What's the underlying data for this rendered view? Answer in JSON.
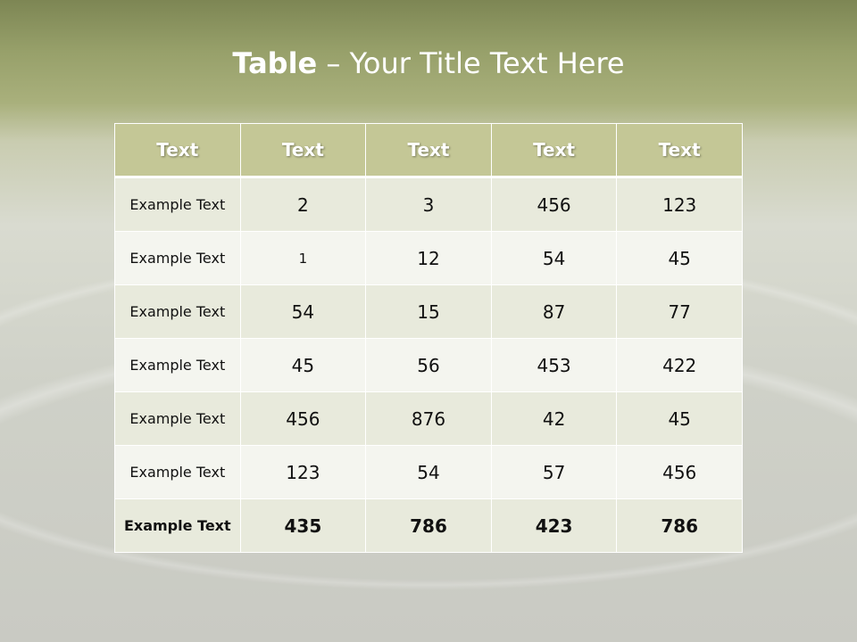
{
  "title": {
    "bold": "Table",
    "rest": " – Your Title Text Here"
  },
  "table": {
    "headers": [
      "Text",
      "Text",
      "Text",
      "Text",
      "Text"
    ],
    "rows": [
      [
        "Example Text",
        "2",
        "3",
        "456",
        "123"
      ],
      [
        "Example Text",
        "1",
        "12",
        "54",
        "45"
      ],
      [
        "Example Text",
        "54",
        "15",
        "87",
        "77"
      ],
      [
        "Example Text",
        "45",
        "56",
        "453",
        "422"
      ],
      [
        "Example Text",
        "456",
        "876",
        "42",
        "45"
      ],
      [
        "Example Text",
        "123",
        "54",
        "57",
        "456"
      ],
      [
        "Example Text",
        "435",
        "786",
        "423",
        "786"
      ]
    ]
  },
  "colors": {
    "header": "#c4c796",
    "row_odd": "#e8eadc",
    "row_even": "#f4f5ef"
  }
}
